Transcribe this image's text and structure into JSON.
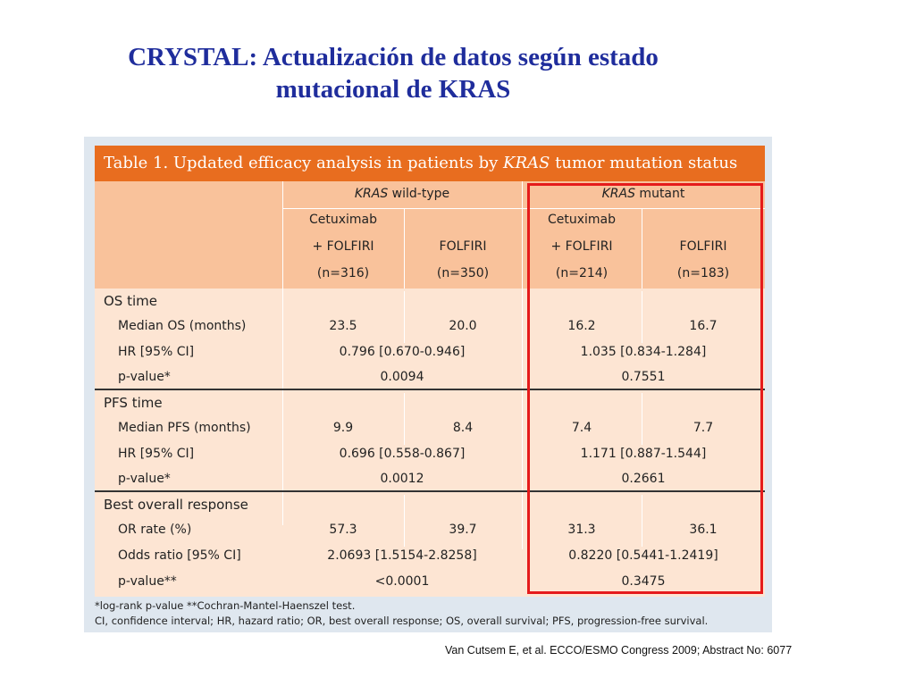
{
  "slide": {
    "title_line1": "CRYSTAL: Actualización de datos según estado",
    "title_line2": "mutacional de KRAS",
    "citation": "Van Cutsem E, et al. ECCO/ESMO Congress 2009; Abstract No: 6077"
  },
  "table": {
    "caption_prefix": "Table 1. Updated efficacy analysis in patients by ",
    "caption_kras": "KRAS",
    "caption_suffix": " tumor mutation status",
    "groups": [
      {
        "kras": "KRAS",
        "label": " wild-type"
      },
      {
        "kras": "KRAS",
        "label": " mutant"
      }
    ],
    "columns": [
      {
        "line1": "Cetuximab",
        "line2": "+ FOLFIRI",
        "line3": "(n=316)"
      },
      {
        "line1": "",
        "line2": "FOLFIRI",
        "line3": "(n=350)"
      },
      {
        "line1": "Cetuximab",
        "line2": "+ FOLFIRI",
        "line3": "(n=214)"
      },
      {
        "line1": "",
        "line2": "FOLFIRI",
        "line3": "(n=183)"
      }
    ],
    "sections": [
      {
        "title": "OS time",
        "median_label": "Median OS (months)",
        "median": [
          "23.5",
          "20.0",
          "16.2",
          "16.7"
        ],
        "hr_label": "HR [95% CI]",
        "hr": [
          "0.796 [0.670-0.946]",
          "1.035 [0.834-1.284]"
        ],
        "p_label": "p-value*",
        "p": [
          "0.0094",
          "0.7551"
        ]
      },
      {
        "title": "PFS time",
        "median_label": "Median PFS (months)",
        "median": [
          "9.9",
          "8.4",
          "7.4",
          "7.7"
        ],
        "hr_label": "HR [95% CI]",
        "hr": [
          "0.696 [0.558-0.867]",
          "1.171 [0.887-1.544]"
        ],
        "p_label": "p-value*",
        "p": [
          "0.0012",
          "0.2661"
        ]
      },
      {
        "title": "Best overall response",
        "median_label": "OR rate (%)",
        "median": [
          "57.3",
          "39.7",
          "31.3",
          "36.1"
        ],
        "hr_label": "Odds ratio [95% CI]",
        "hr": [
          "2.0693 [1.5154-2.8258]",
          "0.8220 [0.5441-1.2419]"
        ],
        "p_label": "p-value**",
        "p": [
          "<0.0001",
          "0.3475"
        ]
      }
    ],
    "footnote1": "*log-rank p-value  **Cochran-Mantel-Haenszel test.",
    "footnote2": "CI, confidence interval; HR, hazard ratio; OR, best overall response; OS, overall survival; PFS, progression-free survival."
  },
  "colors": {
    "title": "#1f2d9c",
    "caption_bg": "#e86d1f",
    "header_bg": "#f9c29b",
    "body_bg": "#fde5d3",
    "highlight": "#e51b1b"
  }
}
